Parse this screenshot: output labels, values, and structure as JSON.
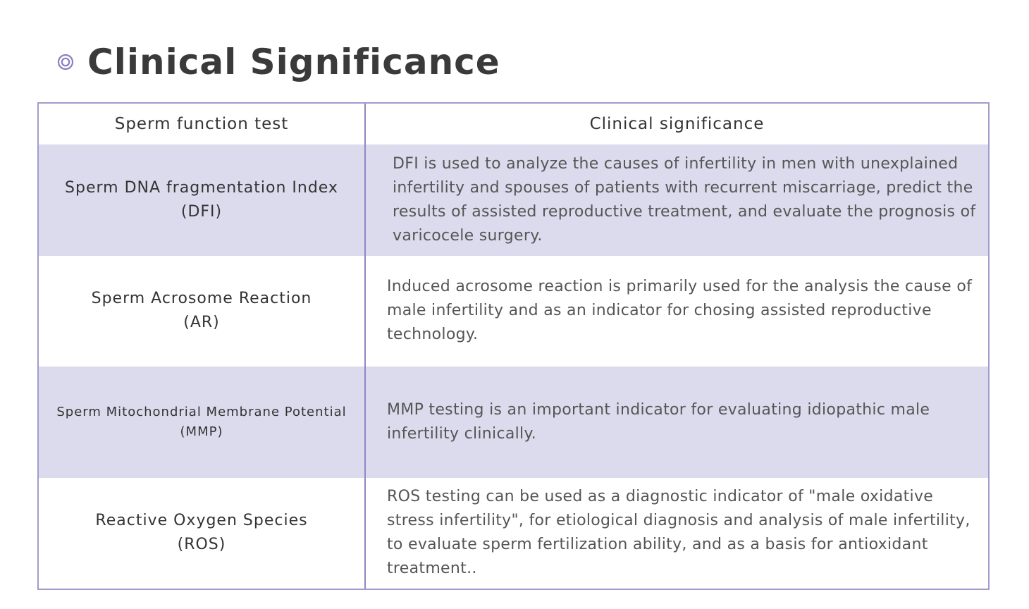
{
  "page": {
    "title": "Clinical Significance"
  },
  "colors": {
    "accent": "#8c7fc0",
    "row_shade": "#dcdbee",
    "border": "#a29ccd"
  },
  "table": {
    "headers": [
      "Sperm function test",
      "Clinical significance"
    ],
    "rows": [
      {
        "test_name": "Sperm DNA fragmentation Index",
        "test_abbr": "(DFI)",
        "significance": "DFI is used to analyze the causes of infertility in men with unexplained infertility and spouses of patients with recurrent miscarriage, predict the results of assisted reproductive treatment, and evaluate the prognosis of varicocele surgery."
      },
      {
        "test_name": "Sperm Acrosome Reaction",
        "test_abbr": "(AR)",
        "significance": "Induced acrosome reaction is primarily used for the analysis the cause of male infertility and as an indicator for chosing assisted reproductive technology."
      },
      {
        "test_name": "Sperm Mitochondrial Membrane Potential",
        "test_abbr": "(MMP)",
        "significance": "MMP testing is an important indicator for evaluating idiopathic male infertility clinically."
      },
      {
        "test_name": "Reactive Oxygen Species",
        "test_abbr": "(ROS)",
        "significance": "ROS testing can be used as a diagnostic indicator of \"male oxidative stress infertility\", for etiological diagnosis and analysis of male infertility, to evaluate sperm fertilization ability, and as a basis for antioxidant treatment.."
      }
    ]
  }
}
